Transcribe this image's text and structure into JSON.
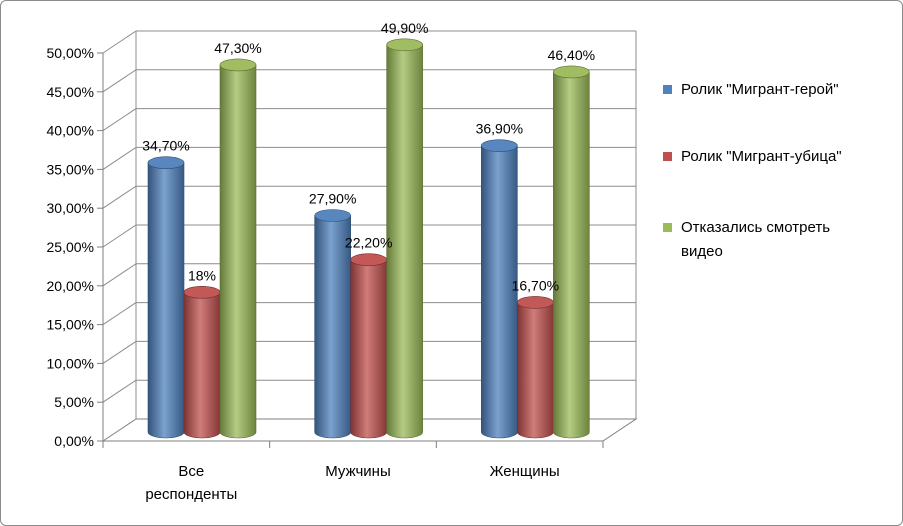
{
  "chart_data": {
    "type": "bar",
    "categories": [
      "Все респонденты",
      "Мужчины",
      "Женщины"
    ],
    "category_lines": [
      [
        "Все",
        "респонденты"
      ],
      [
        "Мужчины"
      ],
      [
        "Женщины"
      ]
    ],
    "series": [
      {
        "name": "Ролик \"Мигрант-герой\"",
        "legend_lines": [
          "Ролик \"Мигрант-герой\""
        ],
        "color": "#4f81bd",
        "values": [
          34.7,
          27.9,
          36.9
        ],
        "labels": [
          "34,70%",
          "27,90%",
          "36,90%"
        ]
      },
      {
        "name": "Ролик \"Мигрант-убица\"",
        "legend_lines": [
          "Ролик \"Мигрант-убица\""
        ],
        "color": "#c0504d",
        "values": [
          18.0,
          22.2,
          16.7
        ],
        "labels": [
          "18%",
          "22,20%",
          "16,70%"
        ]
      },
      {
        "name": "Отказались смотреть видео",
        "legend_lines": [
          "Отказались смотреть",
          "видео"
        ],
        "color": "#9bbb59",
        "values": [
          47.3,
          49.9,
          46.4
        ],
        "labels": [
          "47,30%",
          "49,90%",
          "46,40%"
        ]
      }
    ],
    "y_ticks": [
      "0,00%",
      "5,00%",
      "10,00%",
      "15,00%",
      "20,00%",
      "25,00%",
      "30,00%",
      "35,00%",
      "40,00%",
      "45,00%",
      "50,00%"
    ],
    "ylim": [
      0,
      50
    ],
    "title": "",
    "xlabel": "",
    "ylabel": "",
    "grid": true,
    "legend_position": "right",
    "style": "3d-cylinder"
  }
}
